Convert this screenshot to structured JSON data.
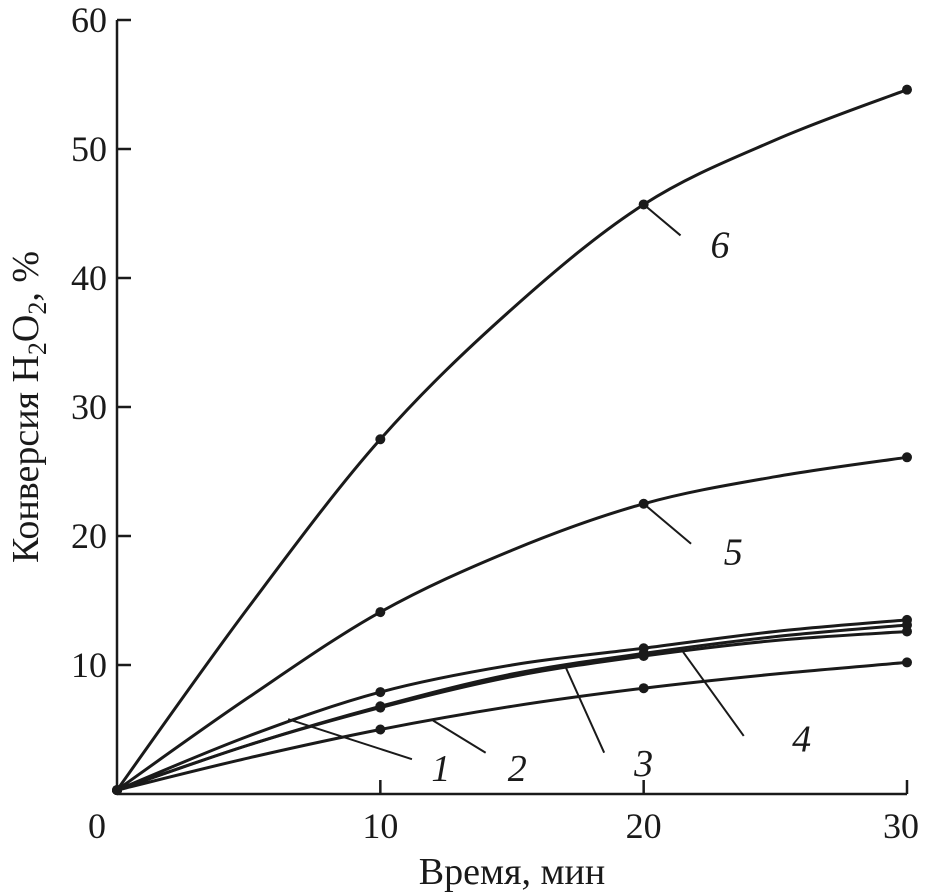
{
  "chart_data": {
    "type": "line",
    "xlabel": "Время, мин",
    "ylabel_main": "Конверсия H",
    "ylabel_sub1": "2",
    "ylabel_mid": "O",
    "ylabel_sub2": "2",
    "ylabel_tail": ", %",
    "xlim": [
      0,
      30
    ],
    "ylim": [
      0,
      60
    ],
    "x_ticks": [
      0,
      10,
      20,
      30
    ],
    "y_ticks": [
      10,
      20,
      30,
      40,
      50,
      60
    ],
    "grid": false,
    "series": [
      {
        "name": "1",
        "marker_x": [
          0,
          10,
          20,
          30
        ],
        "marker_y": [
          0.3,
          6.8,
          10.9,
          13.1
        ],
        "curve": [
          [
            0,
            0.3
          ],
          [
            5,
            3.8
          ],
          [
            10,
            6.8
          ],
          [
            15,
            9.3
          ],
          [
            20,
            10.9
          ],
          [
            25,
            12.2
          ],
          [
            30,
            13.1
          ]
        ]
      },
      {
        "name": "2",
        "marker_x": [
          0,
          10,
          20,
          30
        ],
        "marker_y": [
          0.3,
          5.0,
          8.2,
          10.2
        ],
        "curve": [
          [
            0,
            0.3
          ],
          [
            5,
            2.8
          ],
          [
            10,
            5.0
          ],
          [
            15,
            6.8
          ],
          [
            20,
            8.2
          ],
          [
            25,
            9.3
          ],
          [
            30,
            10.2
          ]
        ]
      },
      {
        "name": "3",
        "marker_x": [
          0,
          10,
          20,
          30
        ],
        "marker_y": [
          0.3,
          7.9,
          11.3,
          13.5
        ],
        "curve": [
          [
            0,
            0.3
          ],
          [
            5,
            4.5
          ],
          [
            10,
            7.9
          ],
          [
            15,
            10.0
          ],
          [
            20,
            11.3
          ],
          [
            25,
            12.6
          ],
          [
            30,
            13.5
          ]
        ]
      },
      {
        "name": "4",
        "marker_x": [
          0,
          10,
          20,
          30
        ],
        "marker_y": [
          0.3,
          6.7,
          10.7,
          12.6
        ],
        "curve": [
          [
            0,
            0.3
          ],
          [
            5,
            3.8
          ],
          [
            10,
            6.7
          ],
          [
            15,
            9.1
          ],
          [
            20,
            10.7
          ],
          [
            25,
            11.9
          ],
          [
            30,
            12.6
          ]
        ]
      },
      {
        "name": "5",
        "marker_x": [
          0,
          10,
          20,
          30
        ],
        "marker_y": [
          0.3,
          14.1,
          22.5,
          26.1
        ],
        "curve": [
          [
            0,
            0.3
          ],
          [
            5,
            7.5
          ],
          [
            10,
            14.1
          ],
          [
            15,
            18.9
          ],
          [
            20,
            22.5
          ],
          [
            25,
            24.6
          ],
          [
            30,
            26.1
          ]
        ]
      },
      {
        "name": "6",
        "marker_x": [
          0,
          10,
          20,
          30
        ],
        "marker_y": [
          0.3,
          27.5,
          45.7,
          54.6
        ],
        "curve": [
          [
            0,
            0.3
          ],
          [
            5,
            14.5
          ],
          [
            10,
            27.5
          ],
          [
            15,
            37.6
          ],
          [
            20,
            45.7
          ],
          [
            25,
            50.7
          ],
          [
            30,
            54.6
          ]
        ]
      }
    ],
    "labels": [
      {
        "text": "1",
        "anchor": [
          6.2,
          5.8
        ]
      },
      {
        "text": "2",
        "anchor": [
          12.0,
          5.7
        ]
      },
      {
        "text": "3",
        "anchor": [
          17.0,
          10.0
        ]
      },
      {
        "text": "4",
        "anchor": [
          21.5,
          11.0
        ]
      },
      {
        "text": "5",
        "anchor": [
          20.0,
          22.5
        ]
      },
      {
        "text": "6",
        "anchor": [
          20.0,
          45.7
        ]
      }
    ]
  }
}
